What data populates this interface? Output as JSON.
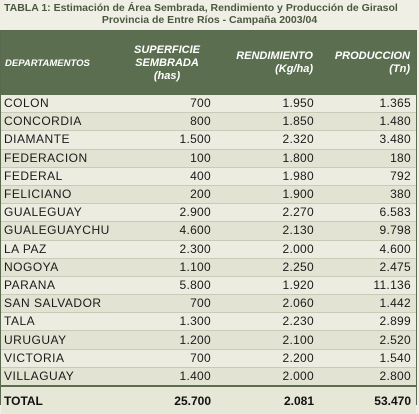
{
  "caption": {
    "line1": "TABLA 1: Estimación de Área Sembrada, Rendimiento y Producción de Girasol",
    "line2": "Provincia de Entre Ríos - Campaña 2003/04"
  },
  "headers": {
    "departamentos": "DEPARTAMENTOS",
    "superficie_1": "SUPERFICIE",
    "superficie_2": "SEMBRADA",
    "superficie_3": "(has)",
    "rendimiento_1": "RENDIMIENTO",
    "rendimiento_2": "(Kg/ha)",
    "produccion_1": "PRODUCCION",
    "produccion_2": "(Tn)"
  },
  "rows": [
    {
      "dep": "COLON",
      "sup": "700",
      "rend": "1.950",
      "prod": "1.365"
    },
    {
      "dep": "CONCORDIA",
      "sup": "800",
      "rend": "1.850",
      "prod": "1.480"
    },
    {
      "dep": "DIAMANTE",
      "sup": "1.500",
      "rend": "2.320",
      "prod": "3.480"
    },
    {
      "dep": "FEDERACION",
      "sup": "100",
      "rend": "1.800",
      "prod": "180"
    },
    {
      "dep": "FEDERAL",
      "sup": "400",
      "rend": "1.980",
      "prod": "792"
    },
    {
      "dep": "FELICIANO",
      "sup": "200",
      "rend": "1.900",
      "prod": "380"
    },
    {
      "dep": "GUALEGUAY",
      "sup": "2.900",
      "rend": "2.270",
      "prod": "6.583"
    },
    {
      "dep": "GUALEGUAYCHU",
      "sup": "4.600",
      "rend": "2.130",
      "prod": "9.798"
    },
    {
      "dep": "LA PAZ",
      "sup": "2.300",
      "rend": "2.000",
      "prod": "4.600"
    },
    {
      "dep": "NOGOYA",
      "sup": "1.100",
      "rend": "2.250",
      "prod": "2.475"
    },
    {
      "dep": "PARANA",
      "sup": "5.800",
      "rend": "1.920",
      "prod": "11.136"
    },
    {
      "dep": "SAN SALVADOR",
      "sup": "700",
      "rend": "2.060",
      "prod": "1.442"
    },
    {
      "dep": "TALA",
      "sup": "1.300",
      "rend": "2.230",
      "prod": "2.899"
    },
    {
      "dep": "URUGUAY",
      "sup": "1.200",
      "rend": "2.100",
      "prod": "2.520"
    },
    {
      "dep": "VICTORIA",
      "sup": "700",
      "rend": "2.200",
      "prod": "1.540"
    },
    {
      "dep": "VILLAGUAY",
      "sup": "1.400",
      "rend": "2.000",
      "prod": "2.800"
    }
  ],
  "total": {
    "label": "TOTAL",
    "sup": "25.700",
    "rend": "2.081",
    "prod": "53.470"
  }
}
